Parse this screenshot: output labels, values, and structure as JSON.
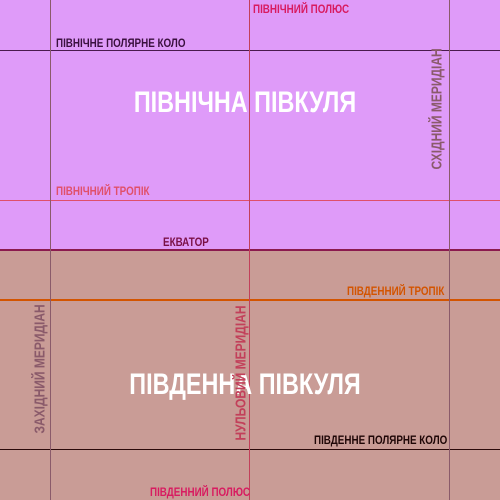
{
  "colors": {
    "north_bg": "#df9bf9",
    "south_bg": "#c99c96",
    "north_pole": "#d81b60",
    "arctic_circle": "#4a1a4e",
    "tropic_cancer": "#e0506a",
    "equator": "#8b1a4e",
    "tropic_capricorn": "#d35400",
    "antarctic_circle": "#2b0a0a",
    "south_pole": "#d81b60",
    "prime_meridian": "#c2405a",
    "west_meridian": "#8a5a6a",
    "east_meridian": "#8a5a6a"
  },
  "labels": {
    "north_pole": "ПІВНІЧНИЙ ПОЛЮС",
    "arctic_circle": "ПІВНІЧНЕ ПОЛЯРНЕ КОЛО",
    "northern_hemisphere": "ПІВНІЧНА ПІВКУЛЯ",
    "tropic_cancer": "ПІВНІЧНИЙ ТРОПІК",
    "equator": "ЕКВАТОР",
    "tropic_capricorn": "ПІВДЕННИЙ ТРОПІК",
    "southern_hemisphere": "ПІВДЕННА ПІВКУЛЯ",
    "antarctic_circle": "ПІВДЕННЕ ПОЛЯРНЕ КОЛО",
    "south_pole": "ПІВДЕННИЙ ПОЛЮС",
    "prime_meridian": "НУЛЬОВИЙ МЕРИДІАН",
    "west_meridian": "ЗАХІДНИЙ МЕРИДІАН",
    "east_meridian": "СХІДНИЙ МЕРИДІАН"
  }
}
